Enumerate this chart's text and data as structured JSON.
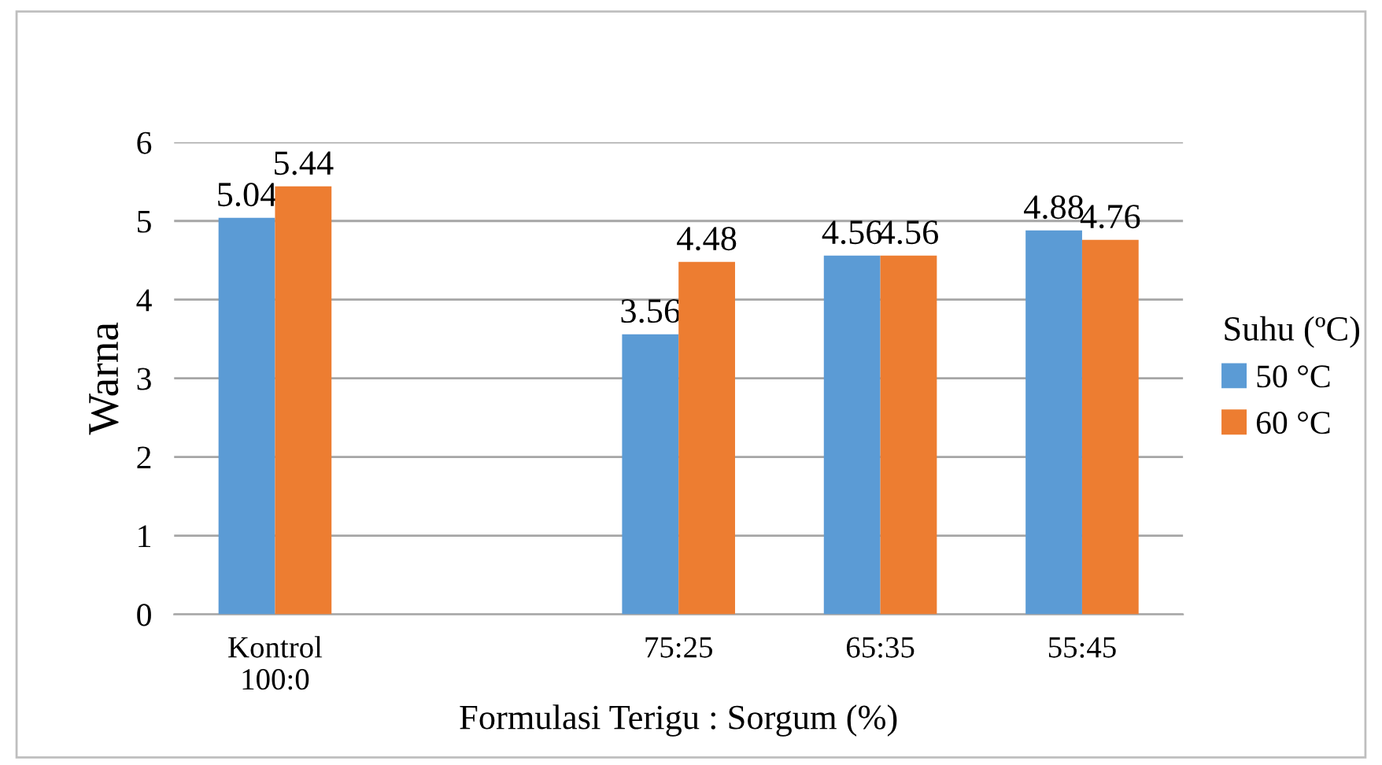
{
  "chart_data": {
    "type": "bar",
    "xlabel": "Formulasi Terigu : Sorgum (%)",
    "ylabel": "Warna",
    "legend_title": "Suhu (ºC)",
    "categories": [
      "Kontrol\n100:0",
      null,
      "75:25",
      "65:35",
      "55:45"
    ],
    "series": [
      {
        "name": "50 °C",
        "color": "#5b9bd5",
        "values": [
          5.04,
          null,
          3.56,
          4.56,
          4.88
        ]
      },
      {
        "name": "60 °C",
        "color": "#ed7d31",
        "values": [
          5.44,
          null,
          4.48,
          4.56,
          4.76
        ]
      }
    ],
    "ylim": [
      0,
      6
    ],
    "yticks": [
      0,
      1,
      2,
      3,
      4,
      5,
      6
    ],
    "grid": "y",
    "legend": "right",
    "data_labels": true
  }
}
